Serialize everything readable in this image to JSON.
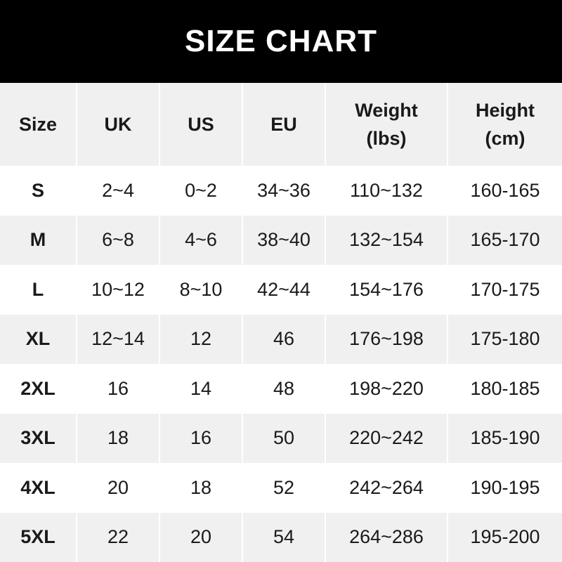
{
  "title": "SIZE CHART",
  "headers": [
    "Size",
    "UK",
    "US",
    "EU",
    "Weight\n(lbs)",
    "Height\n(cm)"
  ],
  "header_lines": [
    [
      "Size"
    ],
    [
      "UK"
    ],
    [
      "US"
    ],
    [
      "EU"
    ],
    [
      "Weight",
      "(lbs)"
    ],
    [
      "Height",
      "(cm)"
    ]
  ],
  "rows": [
    [
      "S",
      "2~4",
      "0~2",
      "34~36",
      "110~132",
      "160-165"
    ],
    [
      "M",
      "6~8",
      "4~6",
      "38~40",
      "132~154",
      "165-170"
    ],
    [
      "L",
      "10~12",
      "8~10",
      "42~44",
      "154~176",
      "170-175"
    ],
    [
      "XL",
      "12~14",
      "12",
      "46",
      "176~198",
      "175-180"
    ],
    [
      "2XL",
      "16",
      "14",
      "48",
      "198~220",
      "180-185"
    ],
    [
      "3XL",
      "18",
      "16",
      "50",
      "220~242",
      "185-190"
    ],
    [
      "4XL",
      "20",
      "18",
      "52",
      "242~264",
      "190-195"
    ],
    [
      "5XL",
      "22",
      "20",
      "54",
      "264~286",
      "195-200"
    ]
  ],
  "colors": {
    "title_bg": "#000000",
    "title_text": "#ffffff",
    "stripe": "#f0f0f0",
    "text": "#1a1a1a"
  }
}
